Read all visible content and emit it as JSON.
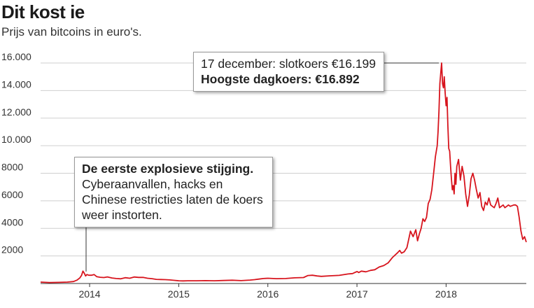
{
  "header": {
    "title": "Dit kost ie",
    "subtitle": "Prijs van bitcoins in euro's."
  },
  "annotations": {
    "peak": {
      "line1": "17 december: slotkoers €16.199",
      "line2": "Hoogste dagkoers: €16.892"
    },
    "first_rise": {
      "heading": "De eerste explosieve stijging.",
      "body": "Cyberaanvallen, hacks en Chinese restricties laten de koers weer instorten."
    }
  },
  "colors": {
    "series": "#d7141d",
    "grid": "#cfcfcf"
  },
  "chart_data": {
    "type": "line",
    "title": "Dit kost ie",
    "subtitle": "Prijs van bitcoins in euro's.",
    "xlabel": "",
    "ylabel": "",
    "ylim": [
      0,
      16000
    ],
    "xlim": [
      2013.45,
      2018.9
    ],
    "grid": true,
    "y_ticks": [
      2000,
      4000,
      6000,
      8000,
      10000,
      12000,
      14000,
      16000
    ],
    "y_tick_labels": [
      "2000",
      "4000",
      "6000",
      "8000",
      "10.000",
      "12.000",
      "14.000",
      "16.000"
    ],
    "x_ticks": [
      2014,
      2015,
      2016,
      2017,
      2018
    ],
    "x_tick_labels": [
      "2014",
      "2015",
      "2016",
      "2017",
      "2018"
    ],
    "series": [
      {
        "x": [
          2013.45,
          2013.55,
          2013.65,
          2013.75,
          2013.82,
          2013.86,
          2013.89,
          2013.91,
          2013.925,
          2013.94,
          2013.955,
          2013.97,
          2013.99,
          2014.02,
          2014.05,
          2014.08,
          2014.12,
          2014.16,
          2014.2,
          2014.25,
          2014.3,
          2014.35,
          2014.4,
          2014.45,
          2014.5,
          2014.55,
          2014.6,
          2014.65,
          2014.7,
          2014.75,
          2014.8,
          2014.85,
          2014.9,
          2014.95,
          2015.0,
          2015.05,
          2015.1,
          2015.2,
          2015.3,
          2015.4,
          2015.5,
          2015.6,
          2015.7,
          2015.8,
          2015.85,
          2015.9,
          2015.95,
          2016.0,
          2016.1,
          2016.2,
          2016.3,
          2016.4,
          2016.45,
          2016.5,
          2016.55,
          2016.6,
          2016.7,
          2016.8,
          2016.9,
          2016.95,
          2017.0,
          2017.02,
          2017.05,
          2017.1,
          2017.15,
          2017.2,
          2017.25,
          2017.3,
          2017.35,
          2017.4,
          2017.45,
          2017.48,
          2017.5,
          2017.53,
          2017.56,
          2017.6,
          2017.63,
          2017.66,
          2017.68,
          2017.7,
          2017.72,
          2017.74,
          2017.76,
          2017.78,
          2017.8,
          2017.82,
          2017.84,
          2017.86,
          2017.88,
          2017.9,
          2017.91,
          2017.92,
          2017.93,
          2017.94,
          2017.95,
          2017.96,
          2017.97,
          2017.98,
          2017.99,
          2018.0,
          2018.01,
          2018.02,
          2018.03,
          2018.04,
          2018.05,
          2018.06,
          2018.07,
          2018.08,
          2018.09,
          2018.1,
          2018.11,
          2018.12,
          2018.14,
          2018.16,
          2018.18,
          2018.2,
          2018.22,
          2018.24,
          2018.26,
          2018.28,
          2018.3,
          2018.32,
          2018.34,
          2018.36,
          2018.38,
          2018.4,
          2018.42,
          2018.44,
          2018.46,
          2018.48,
          2018.5,
          2018.52,
          2018.54,
          2018.56,
          2018.58,
          2018.6,
          2018.62,
          2018.64,
          2018.66,
          2018.68,
          2018.7,
          2018.72,
          2018.74,
          2018.76,
          2018.78,
          2018.8,
          2018.82,
          2018.84,
          2018.86,
          2018.88,
          2018.9
        ],
        "y": [
          100,
          70,
          80,
          100,
          140,
          250,
          400,
          600,
          900,
          750,
          550,
          650,
          600,
          600,
          650,
          500,
          450,
          430,
          480,
          400,
          360,
          340,
          420,
          380,
          470,
          440,
          440,
          380,
          350,
          300,
          290,
          280,
          260,
          230,
          200,
          190,
          200,
          200,
          210,
          200,
          220,
          240,
          210,
          250,
          280,
          320,
          360,
          380,
          350,
          360,
          410,
          430,
          580,
          600,
          550,
          520,
          560,
          590,
          690,
          720,
          870,
          800,
          900,
          850,
          950,
          1000,
          1200,
          1300,
          1500,
          1900,
          2200,
          2400,
          2200,
          2300,
          2600,
          3800,
          3400,
          3900,
          3100,
          3600,
          4000,
          4700,
          4500,
          4800,
          5800,
          6100,
          6800,
          8000,
          9200,
          10000,
          11000,
          12500,
          14500,
          15300,
          16000,
          14500,
          14200,
          15000,
          13800,
          12900,
          13500,
          11500,
          9800,
          9600,
          8500,
          7600,
          6800,
          7100,
          6500,
          8000,
          7200,
          8500,
          9000,
          7500,
          8500,
          7800,
          6500,
          5600,
          6400,
          7600,
          8000,
          7500,
          6800,
          6200,
          6600,
          5600,
          5300,
          5900,
          5700,
          6200,
          5700,
          5600,
          5500,
          5800,
          6200,
          5500,
          5600,
          5700,
          5500,
          5600,
          5700,
          5600,
          5650,
          5700,
          5700,
          5600,
          4800,
          3800,
          3200,
          3400,
          3000
        ]
      }
    ]
  }
}
